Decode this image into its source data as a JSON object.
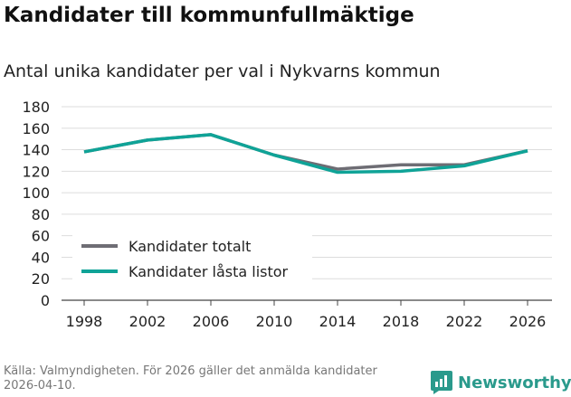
{
  "title": "Kandidater till kommunfullmäktige",
  "subtitle": "Antal unika kandidater per val i Nykvarns kommun",
  "source": "Källa: Valmyndigheten. För 2026 gäller det anmälda kandidater 2026-04-10.",
  "logo": "Newsworthy",
  "chart_data": {
    "type": "line",
    "title": "Kandidater till kommunfullmäktige",
    "subtitle": "Antal unika kandidater per val i Nykvarns kommun",
    "x": [
      "1998",
      "2002",
      "2006",
      "2010",
      "2014",
      "2018",
      "2022",
      "2026"
    ],
    "series": [
      {
        "name": "Kandidater totalt",
        "color": "#6e6d74",
        "values": [
          138,
          149,
          154,
          135,
          122,
          126,
          126,
          139
        ]
      },
      {
        "name": "Kandidater låsta listor",
        "color": "#0fa397",
        "values": [
          138,
          149,
          154,
          135,
          119,
          120,
          125,
          139
        ]
      }
    ],
    "yticks": [
      0,
      20,
      40,
      60,
      80,
      100,
      120,
      140,
      160,
      180
    ],
    "ylim": [
      0,
      180
    ],
    "grid": true,
    "legend": "bottom-left"
  }
}
